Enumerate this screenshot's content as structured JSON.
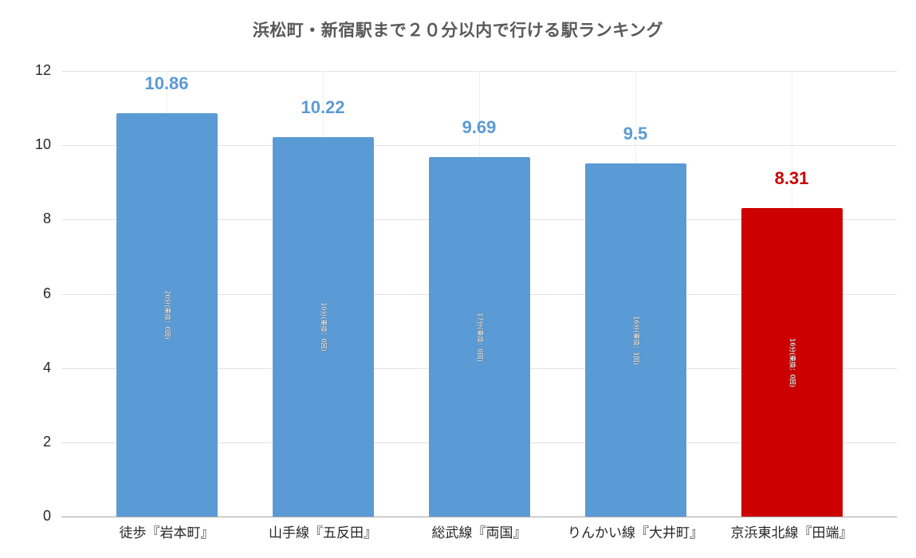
{
  "title": "浜松町・新宿駅まで２０分以内で行ける駅ランキング",
  "colors": {
    "default_bar": "#5b9bd5",
    "highlight_bar": "#cc0000",
    "default_label": "#5b9bd5",
    "highlight_label": "#cc0000"
  },
  "chart_data": {
    "type": "bar",
    "title": "浜松町・新宿駅まで２０分以内で行ける駅ランキング",
    "xlabel": "",
    "ylabel": "",
    "ylim": [
      0,
      12
    ],
    "yticks": [
      "0",
      "2",
      "4",
      "6",
      "8",
      "10",
      "12"
    ],
    "grid": true,
    "legend": "none",
    "categories": [
      "徒歩『岩本町』",
      "山手線『五反田』",
      "総武線『両国』",
      "りんかい線『大井町』",
      "京浜東北線『田端』"
    ],
    "values": [
      10.86,
      10.22,
      9.69,
      9.5,
      8.31
    ],
    "value_labels": [
      "10.86",
      "10.22",
      "9.69",
      "9.5",
      "8.31"
    ],
    "inbar_labels": [
      "20分(乗換：0回)",
      "10分(乗換：0回)",
      "17分(乗換：0回)",
      "16分(乗換：1回)",
      "16分(乗換：0回)"
    ],
    "highlighted_index": 4
  }
}
